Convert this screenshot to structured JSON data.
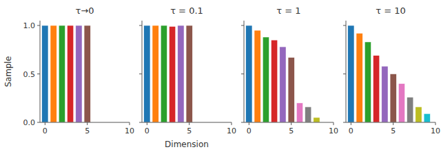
{
  "chart_data": [
    {
      "type": "bar",
      "title": "τ→0",
      "y_label": "Sample",
      "values": [
        1.0,
        1.0,
        1.0,
        1.0,
        1.0,
        1.0
      ],
      "colors": [
        "#1f77b4",
        "#ff7f0e",
        "#2ca02c",
        "#d62728",
        "#9467bd",
        "#8c564b"
      ],
      "xlim": [
        -0.6,
        10
      ],
      "xticks": [
        0,
        5,
        10
      ],
      "ylim": [
        0.0,
        1.05
      ],
      "yticks": [
        {
          "value": 0.0,
          "label": "0.0"
        },
        0.5,
        {
          "value": 1.0,
          "label": "1.0"
        }
      ]
    },
    {
      "type": "bar",
      "title": "τ = 0.1",
      "x_label": "Dimension",
      "values": [
        1.0,
        1.0,
        1.0,
        0.99,
        1.0,
        1.0
      ],
      "colors": [
        "#1f77b4",
        "#ff7f0e",
        "#2ca02c",
        "#d62728",
        "#9467bd",
        "#8c564b"
      ],
      "xlim": [
        -0.6,
        10
      ],
      "xticks": [
        0,
        5,
        10
      ],
      "ylim": [
        0.0,
        1.05
      ],
      "yticks": [
        0.0,
        0.5,
        1.0
      ],
      "tick_labels": "x"
    },
    {
      "type": "bar",
      "title": "τ = 1",
      "values": [
        1.0,
        0.95,
        0.88,
        0.85,
        0.78,
        0.67,
        0.2,
        0.16,
        0.05
      ],
      "colors": [
        "#1f77b4",
        "#ff7f0e",
        "#2ca02c",
        "#d62728",
        "#9467bd",
        "#8c564b",
        "#e377c2",
        "#7f7f7f",
        "#bcbd22"
      ],
      "xlim": [
        -0.6,
        10
      ],
      "xticks": [
        0,
        5,
        10
      ],
      "ylim": [
        0.0,
        1.05
      ],
      "yticks": [
        0.0,
        0.5,
        1.0
      ],
      "tick_labels": "x"
    },
    {
      "type": "bar",
      "title": "τ = 10",
      "values": [
        1.0,
        0.92,
        0.83,
        0.69,
        0.58,
        0.5,
        0.4,
        0.26,
        0.16,
        0.09
      ],
      "colors": [
        "#1f77b4",
        "#ff7f0e",
        "#2ca02c",
        "#d62728",
        "#9467bd",
        "#8c564b",
        "#e377c2",
        "#7f7f7f",
        "#bcbd22",
        "#17becf"
      ],
      "xlim": [
        -0.6,
        10
      ],
      "xticks": [
        0,
        5,
        10
      ],
      "ylim": [
        0.0,
        1.05
      ],
      "yticks": [
        0.0,
        0.5,
        1.0
      ],
      "tick_labels": "x"
    }
  ]
}
